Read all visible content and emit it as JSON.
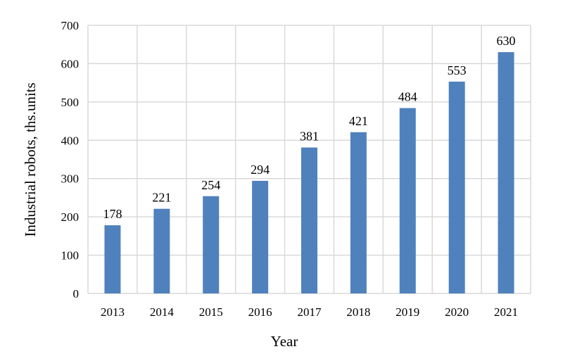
{
  "chart_data": {
    "type": "bar",
    "title": "",
    "xlabel": "Year",
    "ylabel": "Industrial robots, ths.units",
    "categories": [
      "2013",
      "2014",
      "2015",
      "2016",
      "2017",
      "2018",
      "2019",
      "2020",
      "2021"
    ],
    "values": [
      178,
      221,
      254,
      294,
      381,
      421,
      484,
      553,
      630
    ],
    "data_labels": [
      "178",
      "221",
      "254",
      "294",
      "381",
      "421",
      "484",
      "553",
      "630"
    ],
    "ylim": [
      0,
      700
    ],
    "yticks": [
      0,
      100,
      200,
      300,
      400,
      500,
      600,
      700
    ],
    "ytick_labels": [
      "0",
      "100",
      "200",
      "300",
      "400",
      "500",
      "600",
      "700"
    ],
    "grid": true,
    "legend": "none",
    "colors": {
      "bar": "#4f81bd",
      "grid": "#d9d9d9",
      "axis": "#d9d9d9"
    }
  }
}
